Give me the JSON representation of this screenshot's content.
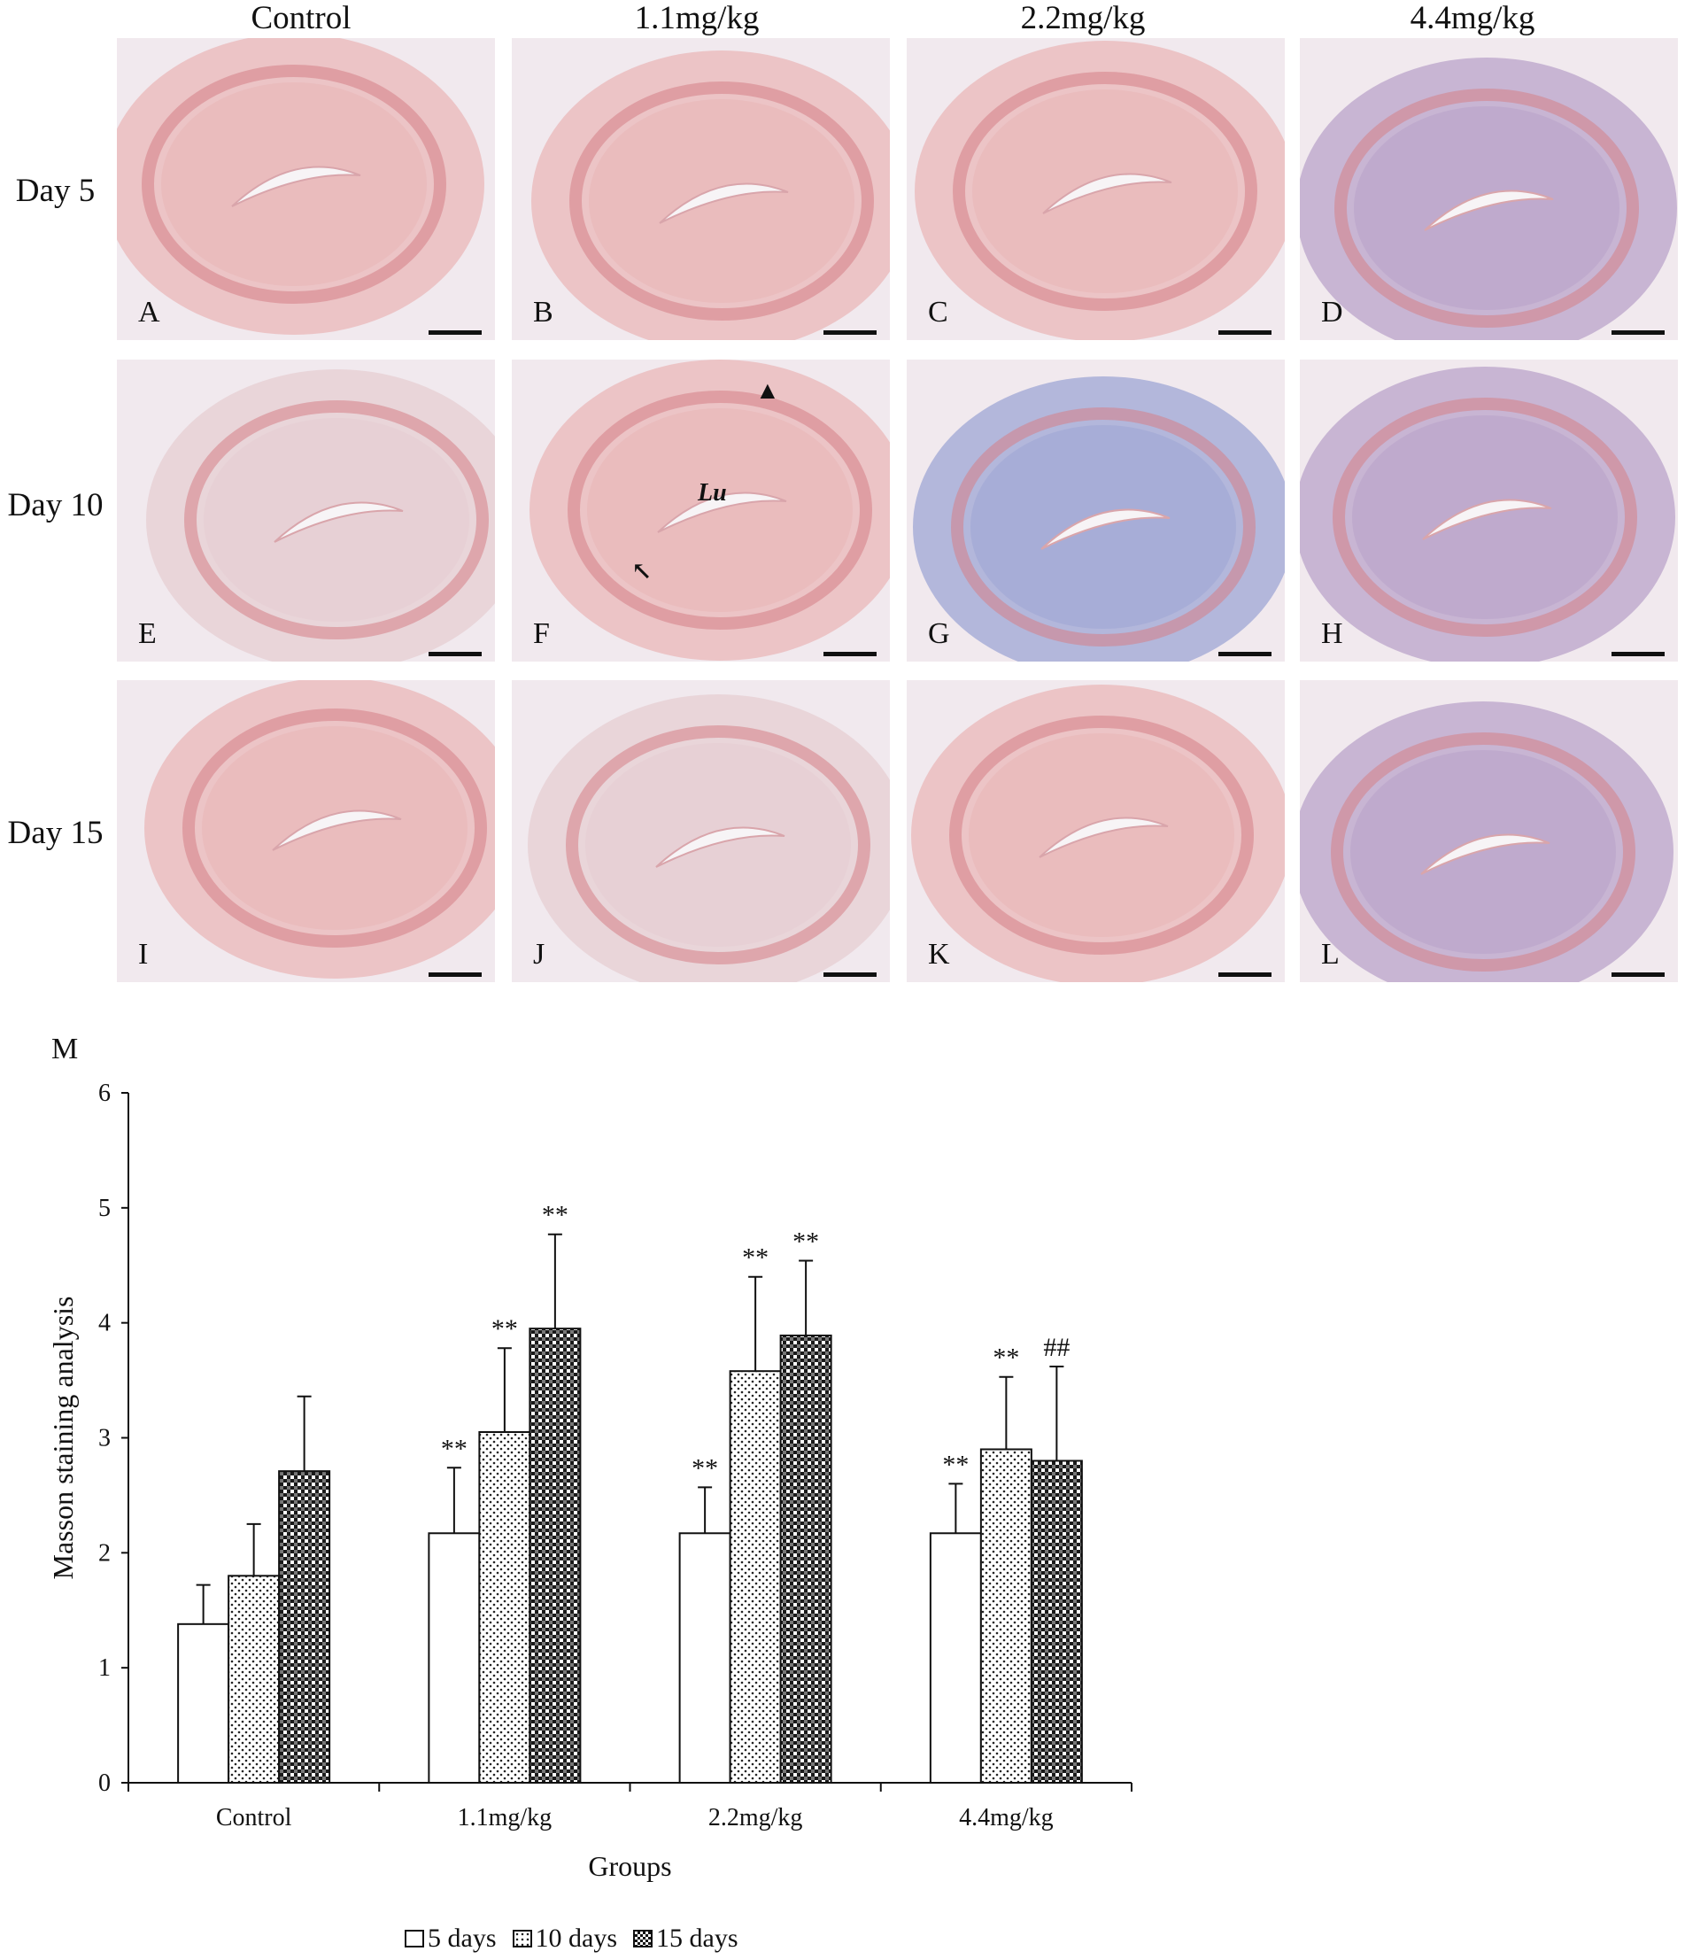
{
  "figure": {
    "column_headers": [
      "Control",
      "1.1mg/kg",
      "2.2mg/kg",
      "4.4mg/kg"
    ],
    "row_headers": [
      "Day 5",
      "Day 10",
      "Day 15"
    ],
    "panels": [
      {
        "letter": "A",
        "tone": "pink"
      },
      {
        "letter": "B",
        "tone": "pink"
      },
      {
        "letter": "C",
        "tone": "pink"
      },
      {
        "letter": "D",
        "tone": "purple"
      },
      {
        "letter": "E",
        "tone": "pale"
      },
      {
        "letter": "F",
        "tone": "pink",
        "lumen_label": "Lu"
      },
      {
        "letter": "G",
        "tone": "blue"
      },
      {
        "letter": "H",
        "tone": "purple"
      },
      {
        "letter": "I",
        "tone": "pink"
      },
      {
        "letter": "J",
        "tone": "pale"
      },
      {
        "letter": "K",
        "tone": "pink"
      },
      {
        "letter": "L",
        "tone": "purple"
      }
    ],
    "stain_colors": {
      "pink": "#e9b7b8",
      "purple": "#b9a3c9",
      "blue": "#9ea6d4",
      "pale": "#e6cdd2",
      "background": "#f1e9ee"
    }
  },
  "chart_data": {
    "type": "bar",
    "panel_label": "M",
    "xlabel": "Groups",
    "ylabel": "Masson staining analysis",
    "ylim": [
      0,
      6
    ],
    "yticks": [
      "0",
      "1",
      "2",
      "3",
      "4",
      "5",
      "6"
    ],
    "categories": [
      "Control",
      "1.1mg/kg",
      "2.2mg/kg",
      "4.4mg/kg"
    ],
    "series": [
      {
        "name": "5 days",
        "pattern": "open",
        "values": [
          1.38,
          2.17,
          2.17,
          2.17
        ],
        "errors": [
          0.34,
          0.57,
          0.4,
          0.43
        ],
        "annotations": [
          "",
          "**",
          "**",
          "**"
        ]
      },
      {
        "name": "10 days",
        "pattern": "dotted",
        "values": [
          1.8,
          3.05,
          3.58,
          2.9
        ],
        "errors": [
          0.45,
          0.73,
          0.82,
          0.63
        ],
        "annotations": [
          "",
          "**",
          "**",
          "**"
        ]
      },
      {
        "name": "15 days",
        "pattern": "checkered",
        "values": [
          2.71,
          3.95,
          3.89,
          2.8
        ],
        "errors": [
          0.65,
          0.82,
          0.65,
          0.82
        ],
        "annotations": [
          "",
          "**",
          "**",
          "##"
        ]
      }
    ],
    "legend_position": "bottom"
  }
}
